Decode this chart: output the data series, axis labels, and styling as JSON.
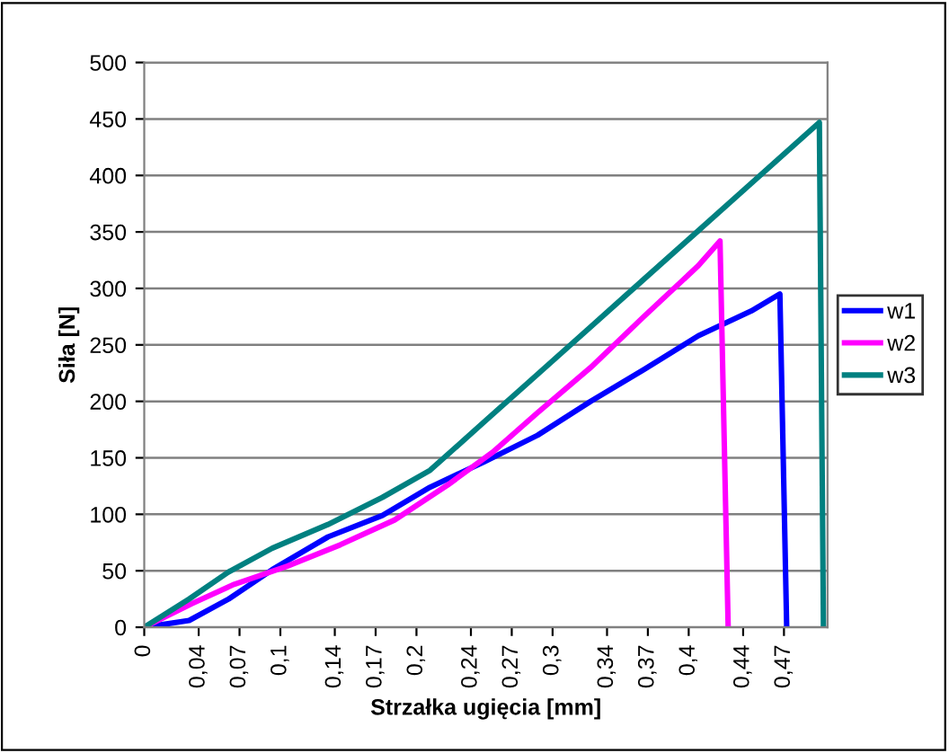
{
  "chart_data": {
    "type": "line",
    "xlabel": "Strzałka ugięcia [mm]",
    "ylabel": "Siła [N]",
    "xlim": [
      0,
      0.502
    ],
    "ylim": [
      0,
      500
    ],
    "xticks": [
      0,
      {
        "value": 0.04,
        "label": "0,04"
      },
      {
        "value": 0.07,
        "label": "0,07"
      },
      {
        "value": 0.1,
        "label": "0,1"
      },
      {
        "value": 0.14,
        "label": "0,14"
      },
      {
        "value": 0.17,
        "label": "0,17"
      },
      {
        "value": 0.2,
        "label": "0,2"
      },
      {
        "value": 0.24,
        "label": "0,24"
      },
      {
        "value": 0.27,
        "label": "0,27"
      },
      {
        "value": 0.3,
        "label": "0,3"
      },
      {
        "value": 0.34,
        "label": "0,34"
      },
      {
        "value": 0.37,
        "label": "0,37"
      },
      {
        "value": 0.4,
        "label": "0,4"
      },
      {
        "value": 0.44,
        "label": "0,44"
      },
      {
        "value": 0.47,
        "label": "0,47"
      }
    ],
    "yticks": [
      0,
      50,
      100,
      150,
      200,
      250,
      300,
      350,
      400,
      450,
      500
    ],
    "grid": "y",
    "legend": "right",
    "marker": "none",
    "line_style": "solid",
    "series": [
      {
        "name": "w1",
        "color": "#0000ff",
        "x": [
          0,
          0.033,
          0.062,
          0.094,
          0.135,
          0.175,
          0.21,
          0.249,
          0.289,
          0.328,
          0.367,
          0.407,
          0.446,
          0.467,
          0.472
        ],
        "values": [
          0,
          6,
          25,
          51,
          80,
          99,
          124,
          146,
          170,
          200,
          228,
          258,
          280,
          295,
          0
        ]
      },
      {
        "name": "w2",
        "color": "#ff00ff",
        "x": [
          0,
          0.035,
          0.066,
          0.105,
          0.144,
          0.184,
          0.223,
          0.256,
          0.289,
          0.328,
          0.367,
          0.407,
          0.423,
          0.429
        ],
        "values": [
          0,
          21,
          38,
          54,
          73,
          95,
          126,
          155,
          190,
          230,
          275,
          320,
          342,
          0
        ]
      },
      {
        "name": "w3",
        "color": "#008080",
        "x": [
          0,
          0.033,
          0.062,
          0.094,
          0.135,
          0.175,
          0.21,
          0.249,
          0.289,
          0.328,
          0.367,
          0.407,
          0.446,
          0.496,
          0.499
        ],
        "values": [
          0,
          25,
          49,
          70,
          91,
          115,
          139,
          181,
          224,
          266,
          308,
          351,
          393,
          447,
          0
        ]
      }
    ]
  }
}
